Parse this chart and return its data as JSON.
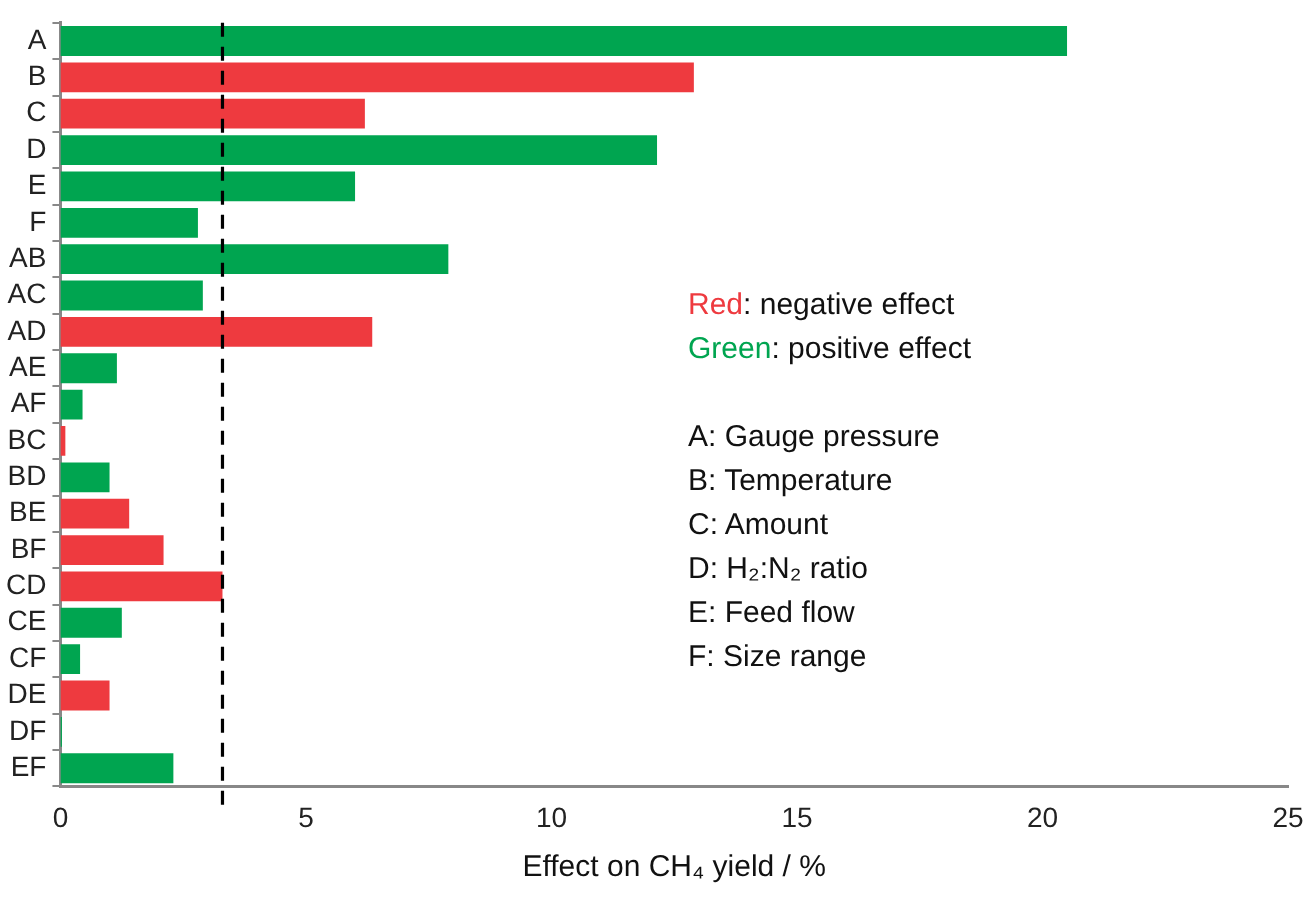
{
  "chart_data": {
    "type": "bar",
    "orientation": "horizontal",
    "xlabel": "Effect on CH₄ yield / %",
    "categories": [
      "A",
      "B",
      "C",
      "D",
      "E",
      "F",
      "AB",
      "AC",
      "AD",
      "AE",
      "AF",
      "BC",
      "BD",
      "BE",
      "BF",
      "CD",
      "CE",
      "CF",
      "DE",
      "DF",
      "EF"
    ],
    "values": [
      20.5,
      12.9,
      6.2,
      12.15,
      6.0,
      2.8,
      7.9,
      2.9,
      6.35,
      1.15,
      0.45,
      0.1,
      1.0,
      1.4,
      2.1,
      3.3,
      1.25,
      0.4,
      1.0,
      0.03,
      2.3
    ],
    "colors": [
      "#00a550",
      "#ee3a3f",
      "#ee3a3f",
      "#00a550",
      "#00a550",
      "#00a550",
      "#00a550",
      "#00a550",
      "#ee3a3f",
      "#00a550",
      "#00a550",
      "#ee3a3f",
      "#00a550",
      "#ee3a3f",
      "#ee3a3f",
      "#ee3a3f",
      "#00a550",
      "#00a550",
      "#ee3a3f",
      "#00a550",
      "#00a550"
    ],
    "xlim": [
      0,
      25
    ],
    "xticks": [
      0,
      5,
      10,
      15,
      20,
      25
    ],
    "ref_lines": [
      {
        "axis": "x",
        "value": 3.3,
        "color": "#000000",
        "line_style": "dashed"
      }
    ],
    "annotations": [
      "Red: negative effect",
      "Green: positive effect",
      "A: Gauge pressure",
      "B: Temperature",
      "C: Amount",
      "D: H₂:N₂ ratio",
      "E: Feed flow",
      "F: Size range"
    ],
    "grid": false,
    "legend": false
  }
}
